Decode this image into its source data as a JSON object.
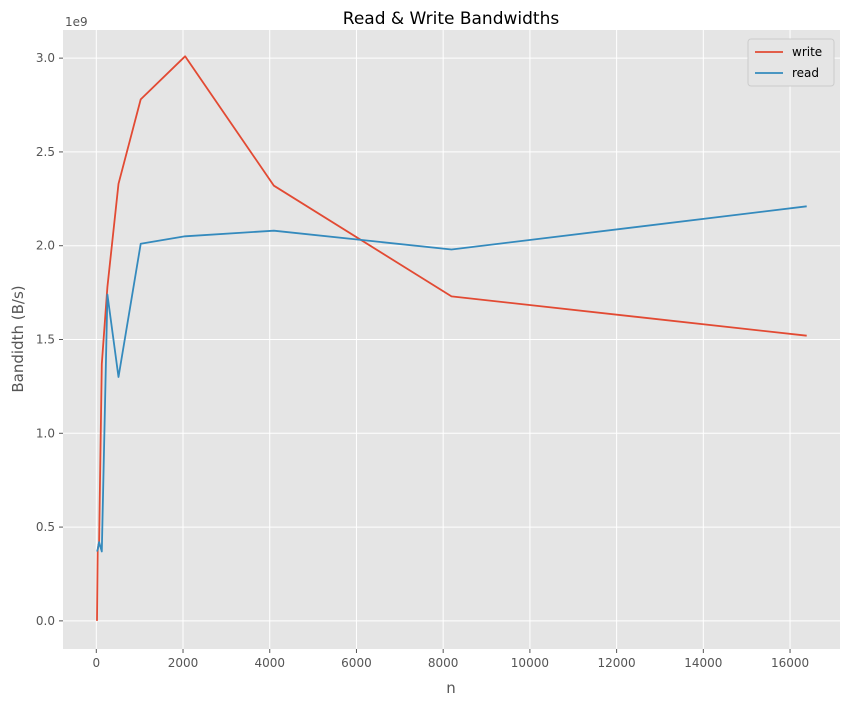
{
  "chart_data": {
    "type": "line",
    "title": "Read & Write Bandwidths",
    "xlabel": "n",
    "ylabel": "Bandidth (B/s)",
    "y_scale_label": "1e9",
    "xlim": [
      -768,
      17152
    ],
    "ylim": [
      -0.15,
      3.15
    ],
    "x_ticks": [
      0,
      2000,
      4000,
      6000,
      8000,
      10000,
      12000,
      14000,
      16000
    ],
    "x_tick_labels": [
      "0",
      "2000",
      "4000",
      "6000",
      "8000",
      "10000",
      "12000",
      "14000",
      "16000"
    ],
    "y_ticks": [
      0.0,
      0.5,
      1.0,
      1.5,
      2.0,
      2.5,
      3.0
    ],
    "y_tick_labels": [
      "0.0",
      "0.5",
      "1.0",
      "1.5",
      "2.0",
      "2.5",
      "3.0"
    ],
    "grid": true,
    "legend_position": "top-right",
    "background": "#e5e5e5",
    "x": [
      16,
      32,
      64,
      128,
      256,
      512,
      1024,
      2048,
      4096,
      8192,
      16384
    ],
    "series": [
      {
        "name": "write",
        "color": "#e24a33",
        "values": [
          0.0,
          0.38,
          0.42,
          1.37,
          1.78,
          2.33,
          2.78,
          3.01,
          2.32,
          1.73,
          1.52
        ]
      },
      {
        "name": "read",
        "color": "#348abd",
        "values": [
          0.37,
          0.38,
          0.42,
          0.37,
          1.74,
          1.3,
          2.01,
          2.05,
          2.08,
          1.98,
          2.21
        ]
      }
    ]
  }
}
